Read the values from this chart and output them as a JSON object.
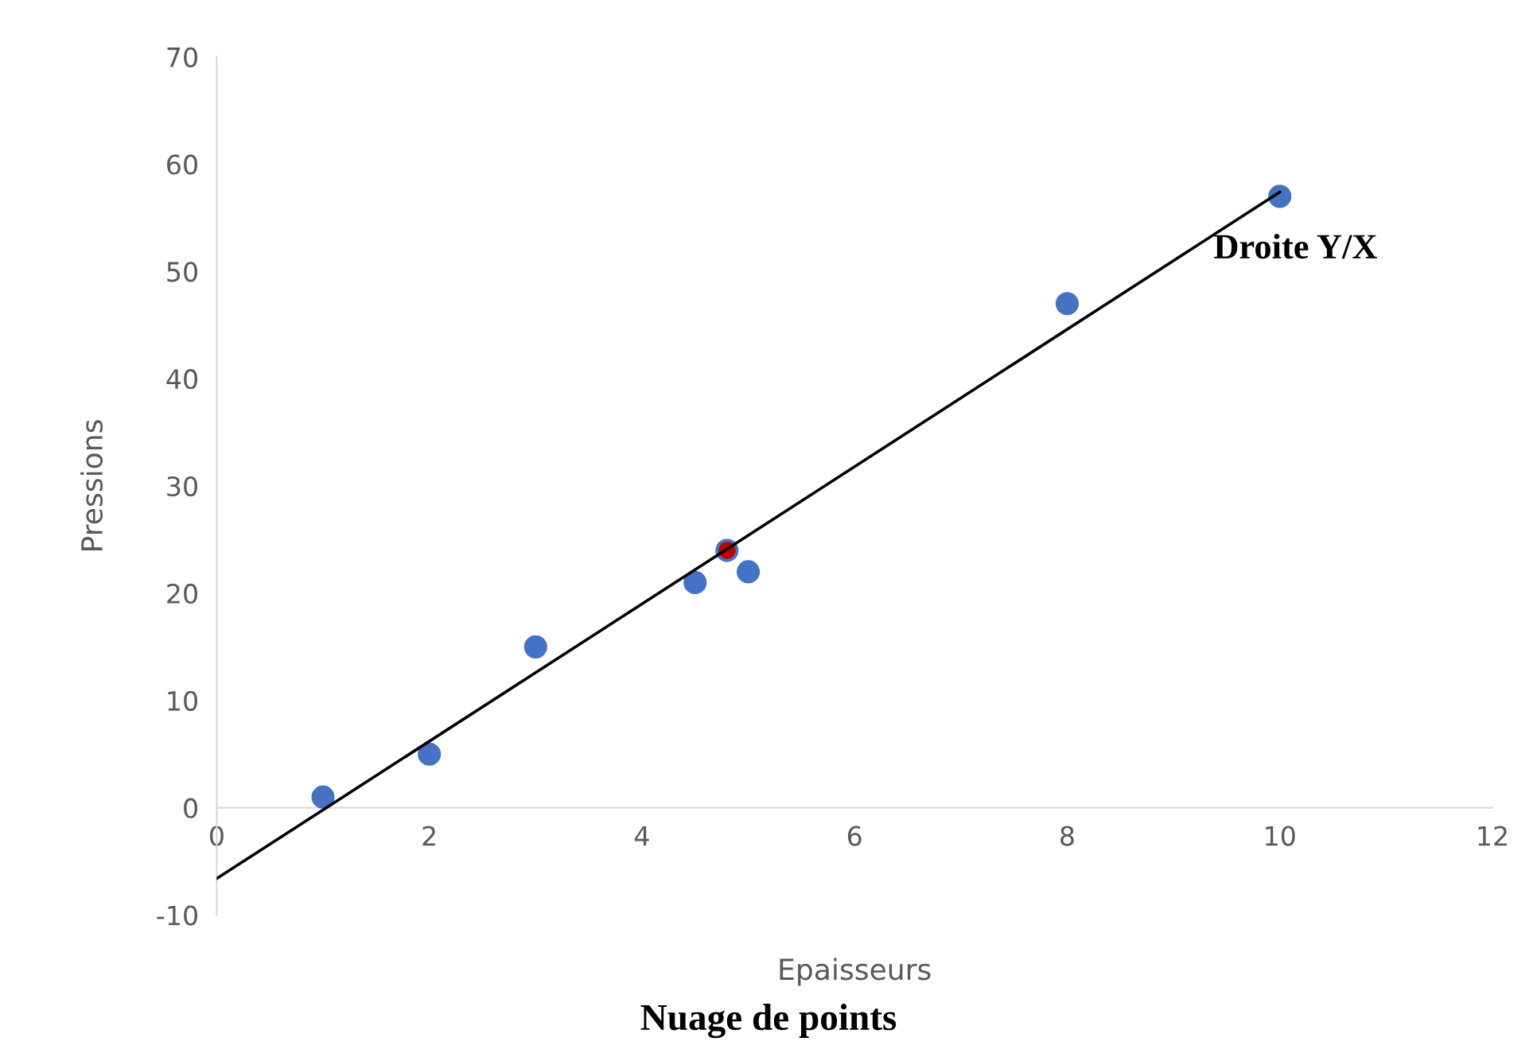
{
  "chart_data": {
    "type": "scatter",
    "title": "Nuage de points",
    "xlabel": "Epaisseurs",
    "ylabel": "Pressions",
    "annotations": [
      "Droite Y/X"
    ],
    "series": [
      {
        "color": "#4472c4",
        "x": [
          1,
          2,
          3,
          4.5,
          4.8,
          5,
          8,
          10
        ],
        "values": [
          1,
          5,
          15,
          21,
          24,
          22,
          47,
          57
        ],
        "marker": "circle"
      },
      {
        "color": "#c00000",
        "x": [
          4.8
        ],
        "values": [
          24
        ],
        "marker": "circle"
      },
      {
        "type": "line",
        "color": "#000000",
        "x": [
          0,
          10
        ],
        "values": [
          -6.6,
          57.4
        ],
        "marker": "none",
        "line_style": "solid"
      }
    ],
    "xlim": [
      0,
      12
    ],
    "xticks": [
      0,
      2,
      4,
      6,
      8,
      10,
      12
    ],
    "ylim": [
      -10,
      70
    ],
    "yticks": [
      -10,
      0,
      10,
      20,
      30,
      40,
      50,
      60,
      70
    ],
    "grid": false,
    "legend": false
  }
}
